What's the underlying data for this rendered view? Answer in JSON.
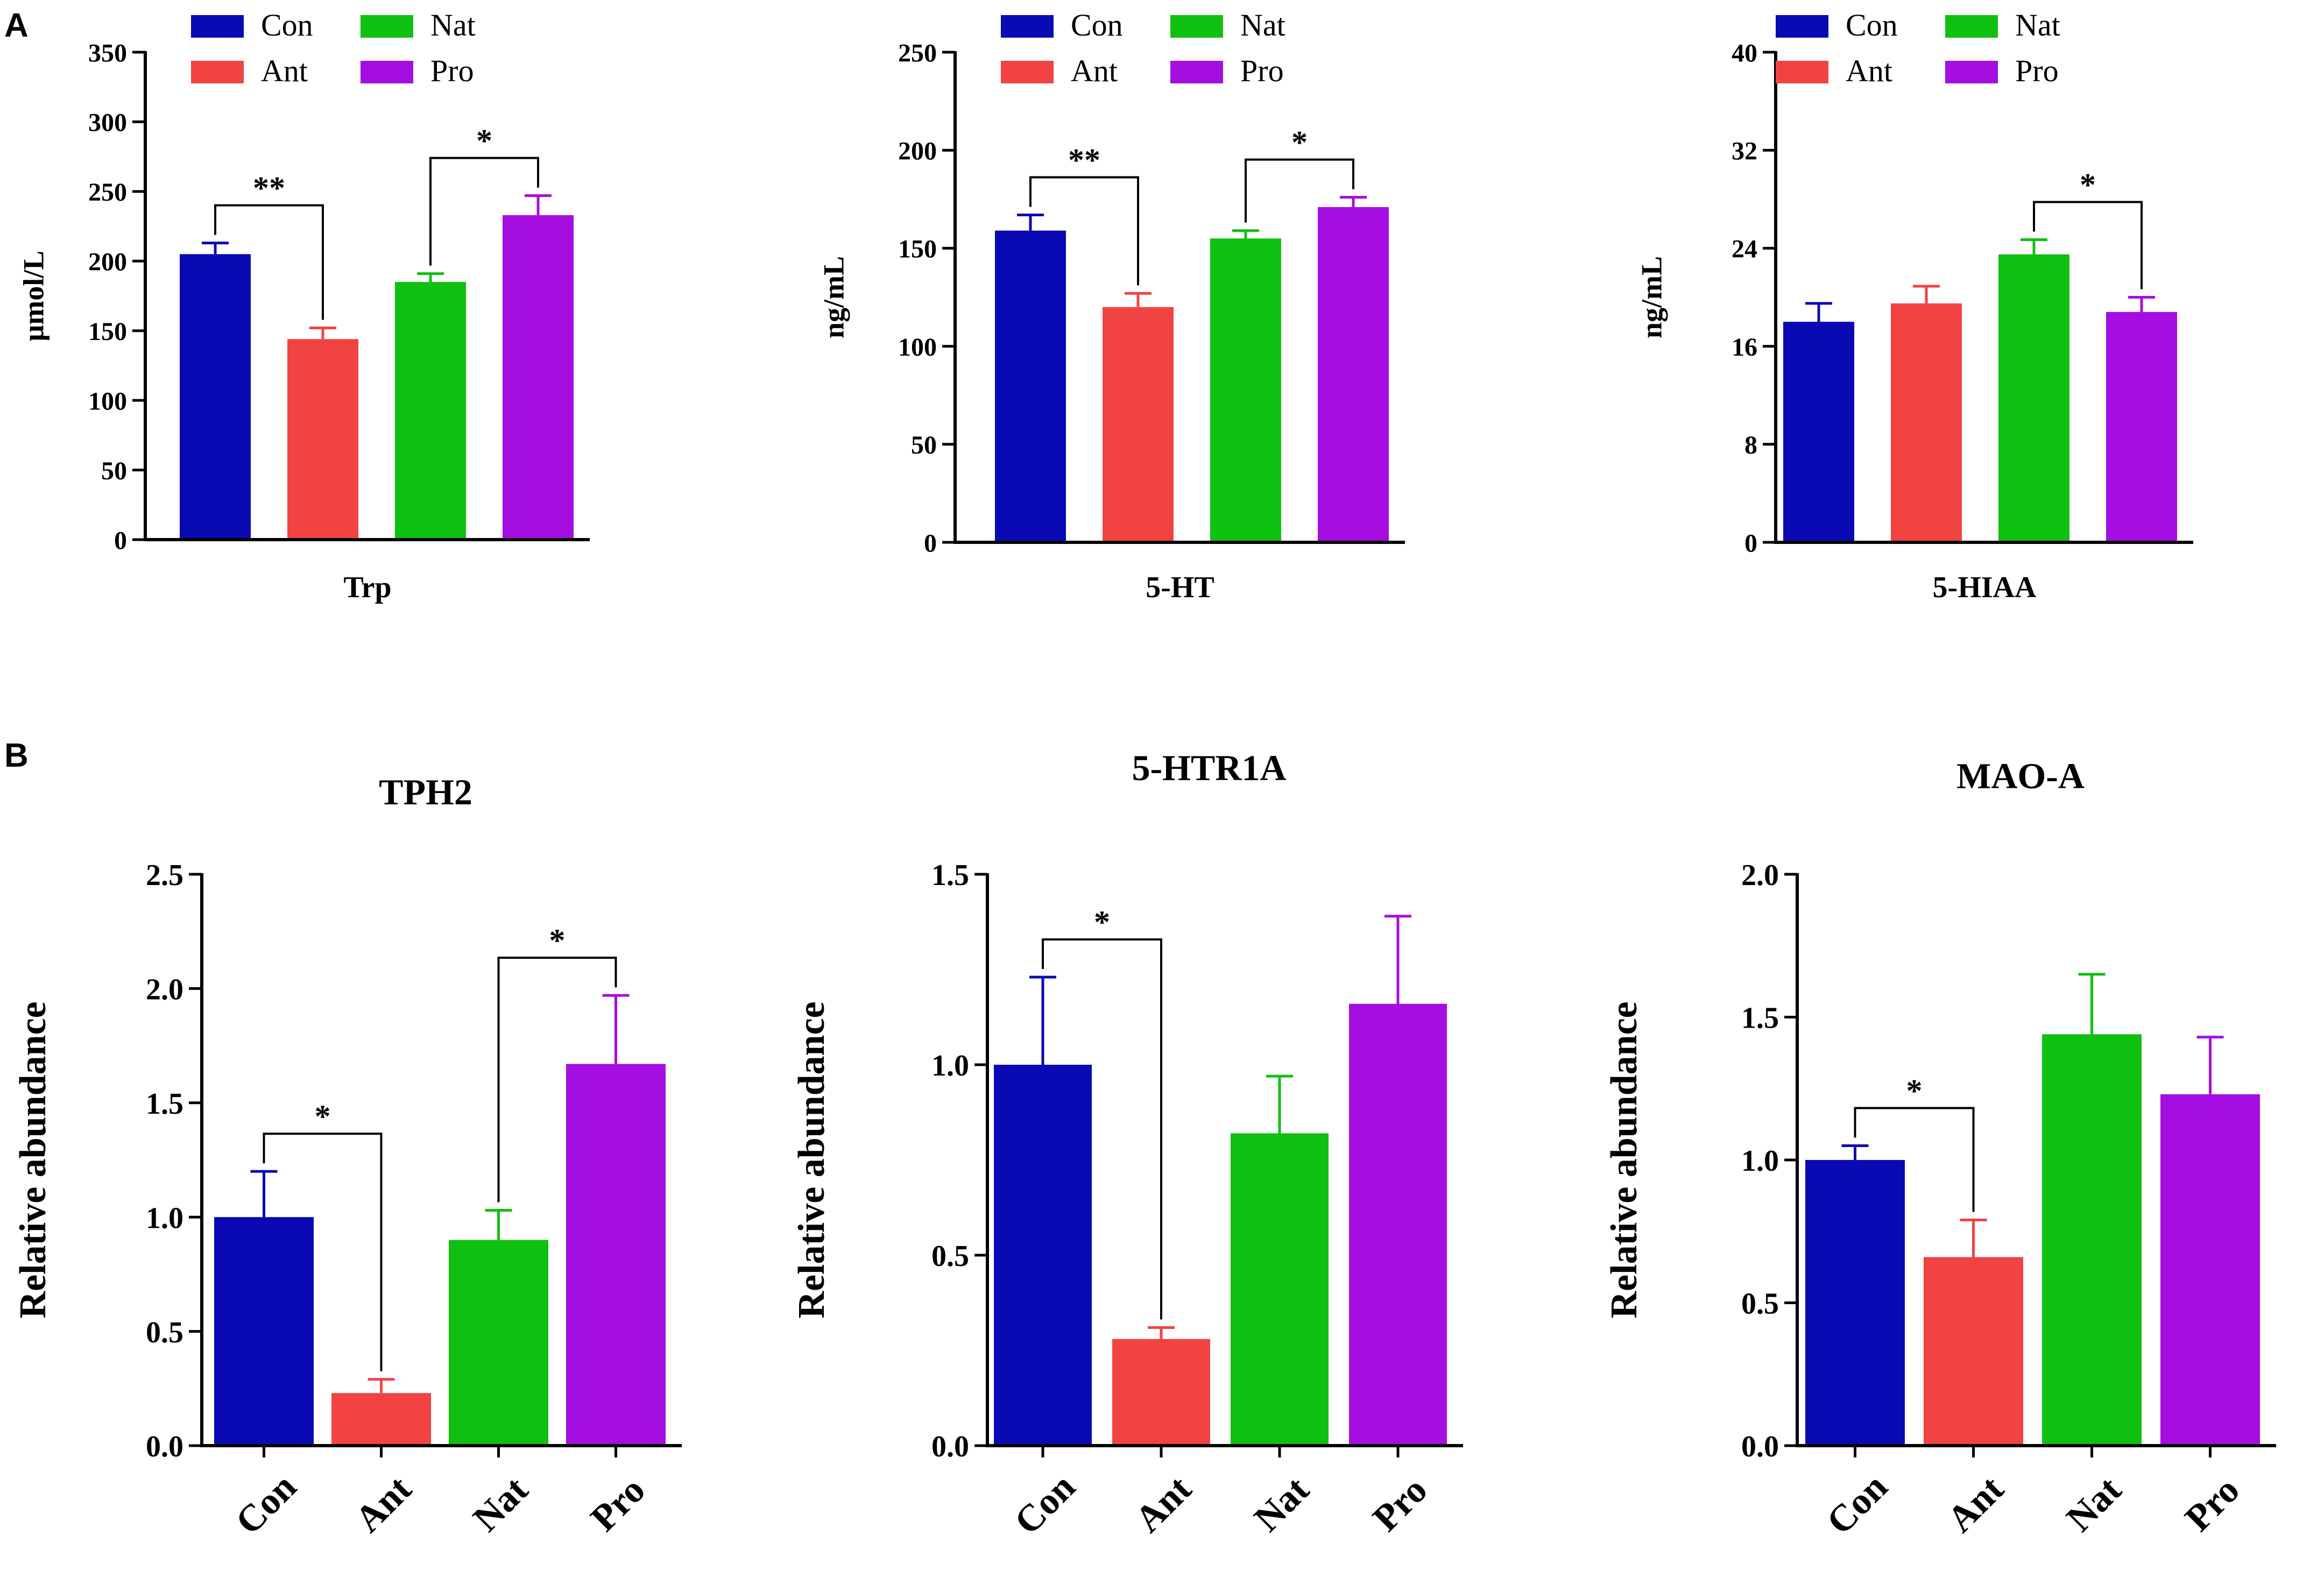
{
  "figure": {
    "panel_a_label": "A",
    "panel_b_label": "B"
  },
  "colors": {
    "Con": "#0a0ab4",
    "Ant": "#f24343",
    "Nat": "#10c010",
    "Pro": "#a50ee0",
    "axis": "#000000"
  },
  "chart_data": [
    {
      "type": "bar",
      "panel": "A",
      "title": "",
      "xlabel": "Trp",
      "ylabel": "μmol/L",
      "categories": [
        "Con",
        "Ant",
        "Nat",
        "Pro"
      ],
      "values": [
        205,
        144,
        185,
        233
      ],
      "errors": [
        8,
        8,
        6,
        14
      ],
      "ylim": [
        0,
        350
      ],
      "yticks": [
        "0",
        "50",
        "100",
        "150",
        "200",
        "250",
        "300",
        "350"
      ],
      "legend": [
        "Con",
        "Ant",
        "Nat",
        "Pro"
      ],
      "legend_position": "top",
      "significance": [
        {
          "from": "Con",
          "to": "Ant",
          "label": "**"
        },
        {
          "from": "Nat",
          "to": "Pro",
          "label": "*"
        }
      ]
    },
    {
      "type": "bar",
      "panel": "A",
      "title": "",
      "xlabel": "5-HT",
      "ylabel": "ng/mL",
      "categories": [
        "Con",
        "Ant",
        "Nat",
        "Pro"
      ],
      "values": [
        159,
        120,
        155,
        171
      ],
      "errors": [
        8,
        7,
        4,
        5
      ],
      "ylim": [
        0,
        250
      ],
      "yticks": [
        "0",
        "50",
        "100",
        "150",
        "200",
        "250"
      ],
      "legend": [
        "Con",
        "Ant",
        "Nat",
        "Pro"
      ],
      "legend_position": "top",
      "significance": [
        {
          "from": "Con",
          "to": "Ant",
          "label": "**"
        },
        {
          "from": "Nat",
          "to": "Pro",
          "label": "*"
        }
      ]
    },
    {
      "type": "bar",
      "panel": "A",
      "title": "",
      "xlabel": "5-HIAA",
      "ylabel": "ng/mL",
      "categories": [
        "Con",
        "Ant",
        "Nat",
        "Pro"
      ],
      "values": [
        18,
        19.5,
        23.5,
        18.8
      ],
      "errors": [
        1.5,
        1.4,
        1.2,
        1.2
      ],
      "ylim": [
        0,
        40
      ],
      "yticks": [
        "0",
        "8",
        "16",
        "24",
        "32",
        "40"
      ],
      "legend": [
        "Con",
        "Ant",
        "Nat",
        "Pro"
      ],
      "legend_position": "top",
      "significance": [
        {
          "from": "Nat",
          "to": "Pro",
          "label": "*"
        }
      ]
    },
    {
      "type": "bar",
      "panel": "B",
      "title": "TPH2",
      "xlabel": "",
      "ylabel": "Relative abundance",
      "categories": [
        "Con",
        "Ant",
        "Nat",
        "Pro"
      ],
      "values": [
        1.0,
        0.23,
        0.9,
        1.67
      ],
      "errors": [
        0.2,
        0.06,
        0.13,
        0.3
      ],
      "ylim": [
        0,
        2.5
      ],
      "yticks": [
        "0.0",
        "0.5",
        "1.0",
        "1.5",
        "2.0",
        "2.5"
      ],
      "significance": [
        {
          "from": "Con",
          "to": "Ant",
          "label": "*"
        },
        {
          "from": "Nat",
          "to": "Pro",
          "label": "*"
        }
      ]
    },
    {
      "type": "bar",
      "panel": "B",
      "title": "5-HTR1A",
      "xlabel": "",
      "ylabel": "Relative abundance",
      "categories": [
        "Con",
        "Ant",
        "Nat",
        "Pro"
      ],
      "values": [
        1.0,
        0.28,
        0.82,
        1.16
      ],
      "errors": [
        0.23,
        0.03,
        0.15,
        0.23
      ],
      "ylim": [
        0,
        1.5
      ],
      "yticks": [
        "0.0",
        "0.5",
        "1.0",
        "1.5"
      ],
      "significance": [
        {
          "from": "Con",
          "to": "Ant",
          "label": "*"
        }
      ]
    },
    {
      "type": "bar",
      "panel": "B",
      "title": "MAO-A",
      "xlabel": "",
      "ylabel": "Relative abundance",
      "categories": [
        "Con",
        "Ant",
        "Nat",
        "Pro"
      ],
      "values": [
        1.0,
        0.66,
        1.44,
        1.23
      ],
      "errors": [
        0.05,
        0.13,
        0.21,
        0.2
      ],
      "ylim": [
        0,
        2.0
      ],
      "yticks": [
        "0.0",
        "0.5",
        "1.0",
        "1.5",
        "2.0"
      ],
      "significance": [
        {
          "from": "Con",
          "to": "Ant",
          "label": "*"
        }
      ]
    }
  ]
}
